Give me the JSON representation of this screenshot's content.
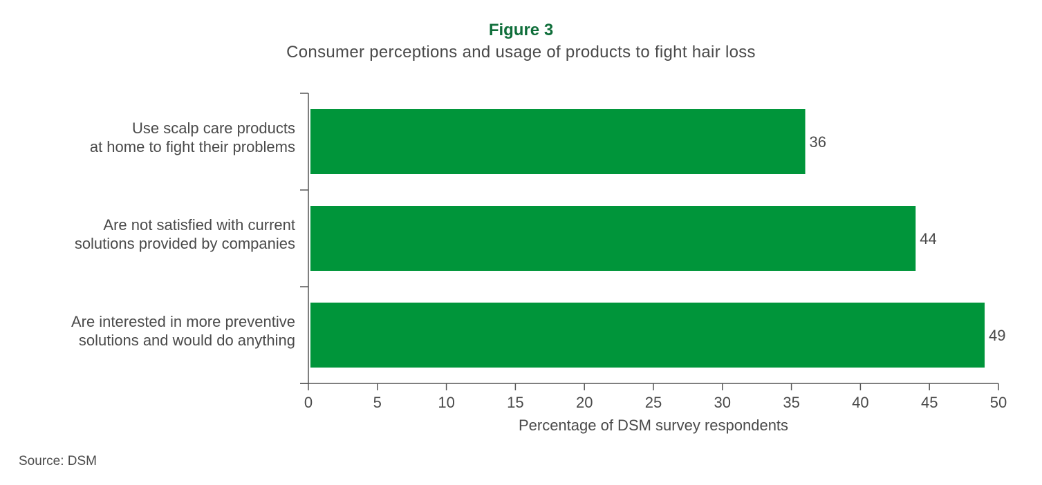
{
  "figure_label": "Figure 3",
  "source": "Source: DSM",
  "colors": {
    "bar": "#00953a",
    "label_accent": "#0f6e3a",
    "text": "#4a4a4a",
    "axis": "#555555"
  },
  "chart_data": {
    "type": "bar",
    "orientation": "horizontal",
    "title": "Consumer perceptions and usage of products to fight hair loss",
    "xlabel": "Percentage of DSM survey respondents",
    "ylabel": "",
    "xlim": [
      0,
      50
    ],
    "xticks": [
      0,
      5,
      10,
      15,
      20,
      25,
      30,
      35,
      40,
      45,
      50
    ],
    "grid": false,
    "categories": [
      [
        "Use scalp care products",
        "at home to fight their problems"
      ],
      [
        "Are not satisfied with current",
        "solutions provided by companies"
      ],
      [
        "Are interested in more preventive",
        "solutions and would do anything"
      ]
    ],
    "values": [
      36,
      44,
      49
    ],
    "data_labels": [
      "36",
      "44",
      "49"
    ]
  }
}
